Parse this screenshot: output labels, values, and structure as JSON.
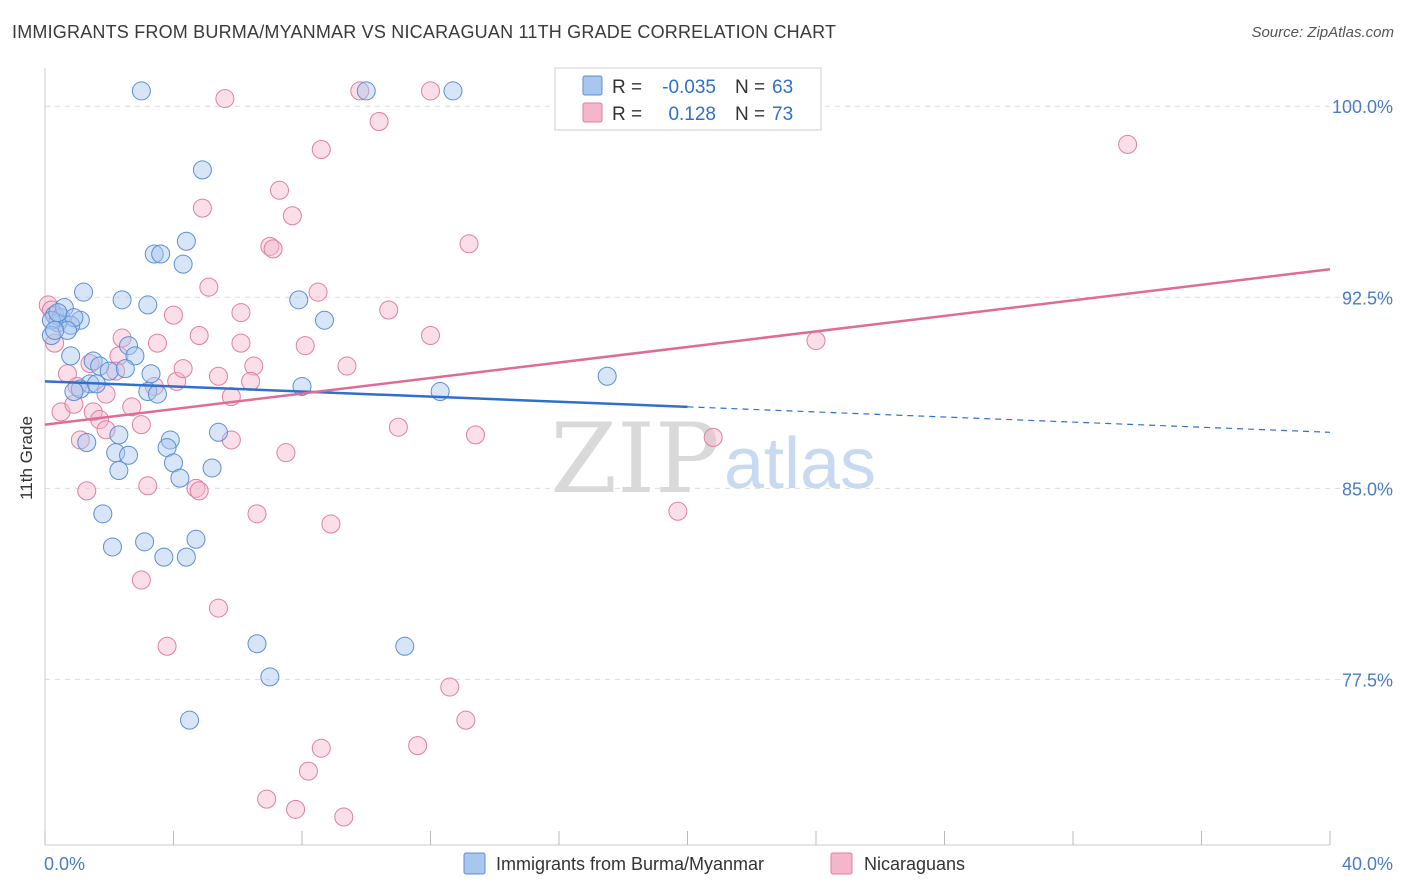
{
  "title": "IMMIGRANTS FROM BURMA/MYANMAR VS NICARAGUAN 11TH GRADE CORRELATION CHART",
  "source": "Source: ZipAtlas.com",
  "watermark": {
    "zip": "ZIP",
    "atlas": "atlas"
  },
  "colors": {
    "blue_fill": "#a9c6ee",
    "blue_stroke": "#5b8fd6",
    "blue_line": "#2f6fcf",
    "pink_fill": "#f5b6cb",
    "pink_stroke": "#e07fa0",
    "pink_line": "#e06c96",
    "tick_text": "#4a7cc4",
    "grid": "#dcdcdc"
  },
  "legend_stats": [
    {
      "r_label": "R =",
      "r_value": "-0.035",
      "n_label": "N =",
      "n_value": "63"
    },
    {
      "r_label": "R =",
      "r_value": "0.128",
      "n_label": "N =",
      "n_value": "73"
    }
  ],
  "chart_data": {
    "type": "scatter",
    "xlabel": "",
    "ylabel": "11th Grade",
    "xlim": [
      0,
      40
    ],
    "ylim": [
      71,
      101.5
    ],
    "y_ticks": [
      77.5,
      85.0,
      92.5,
      100.0
    ],
    "y_tick_labels": [
      "77.5%",
      "85.0%",
      "92.5%",
      "100.0%"
    ],
    "x_tick_labels": [
      "0.0%",
      "40.0%"
    ],
    "grid": true,
    "legend": "bottom-center",
    "series": [
      {
        "name": "Immigrants from Burma/Myanmar",
        "color": "#a9c6ee",
        "trend": {
          "x": [
            0,
            20,
            40
          ],
          "y": [
            89.2,
            88.2,
            87.2
          ],
          "solid_until": 20
        },
        "points": [
          [
            3,
            100.6
          ],
          [
            10,
            100.6
          ],
          [
            12.7,
            100.6
          ],
          [
            4.9,
            97.5
          ],
          [
            4.4,
            94.7
          ],
          [
            3.4,
            94.2
          ],
          [
            3.6,
            94.2
          ],
          [
            4.3,
            93.8
          ],
          [
            1.2,
            92.7
          ],
          [
            2.4,
            92.4
          ],
          [
            3.2,
            92.2
          ],
          [
            0.3,
            91.8
          ],
          [
            0.5,
            91.7
          ],
          [
            1.1,
            91.6
          ],
          [
            0.4,
            91.5
          ],
          [
            0.2,
            91.6
          ],
          [
            0.8,
            91.4
          ],
          [
            7.9,
            92.4
          ],
          [
            8.7,
            91.6
          ],
          [
            2.6,
            90.6
          ],
          [
            0.8,
            90.2
          ],
          [
            1.5,
            90.0
          ],
          [
            2.8,
            90.2
          ],
          [
            1.7,
            89.8
          ],
          [
            2.0,
            89.6
          ],
          [
            3.3,
            89.5
          ],
          [
            1.4,
            89.1
          ],
          [
            1.1,
            88.9
          ],
          [
            0.9,
            88.8
          ],
          [
            3.2,
            88.8
          ],
          [
            8.0,
            89.0
          ],
          [
            12.3,
            88.8
          ],
          [
            17.5,
            89.4
          ],
          [
            2.3,
            87.1
          ],
          [
            3.9,
            86.9
          ],
          [
            5.4,
            87.2
          ],
          [
            3.8,
            86.6
          ],
          [
            1.3,
            86.8
          ],
          [
            2.2,
            86.4
          ],
          [
            2.6,
            86.3
          ],
          [
            4.0,
            86.0
          ],
          [
            2.3,
            85.7
          ],
          [
            5.2,
            85.8
          ],
          [
            4.2,
            85.4
          ],
          [
            1.8,
            84.0
          ],
          [
            4.7,
            83.0
          ],
          [
            3.1,
            82.9
          ],
          [
            2.1,
            82.7
          ],
          [
            3.7,
            82.3
          ],
          [
            4.4,
            82.3
          ],
          [
            6.6,
            78.9
          ],
          [
            11.2,
            78.8
          ],
          [
            7.0,
            77.6
          ],
          [
            4.5,
            75.9
          ],
          [
            0.6,
            92.1
          ],
          [
            0.9,
            91.7
          ],
          [
            2.5,
            89.7
          ],
          [
            0.7,
            91.2
          ],
          [
            1.6,
            89.1
          ],
          [
            3.5,
            88.7
          ],
          [
            0.2,
            91.0
          ],
          [
            0.3,
            91.2
          ],
          [
            0.4,
            91.9
          ]
        ]
      },
      {
        "name": "Nicaraguans",
        "color": "#f5b6cb",
        "trend": {
          "x": [
            0,
            40
          ],
          "y": [
            87.5,
            93.6
          ]
        },
        "points": [
          [
            0.1,
            92.2
          ],
          [
            0.3,
            90.7
          ],
          [
            0.5,
            88.0
          ],
          [
            5.6,
            100.3
          ],
          [
            9.8,
            100.6
          ],
          [
            12.0,
            100.6
          ],
          [
            21.9,
            100.6
          ],
          [
            10.4,
            99.4
          ],
          [
            8.6,
            98.3
          ],
          [
            33.7,
            98.5
          ],
          [
            7.3,
            96.7
          ],
          [
            4.9,
            96.0
          ],
          [
            7.7,
            95.7
          ],
          [
            13.2,
            94.6
          ],
          [
            7.0,
            94.5
          ],
          [
            7.1,
            94.4
          ],
          [
            5.1,
            92.9
          ],
          [
            8.5,
            92.7
          ],
          [
            4.0,
            91.8
          ],
          [
            6.1,
            91.9
          ],
          [
            10.7,
            92.0
          ],
          [
            4.8,
            91.0
          ],
          [
            2.4,
            90.9
          ],
          [
            3.5,
            90.7
          ],
          [
            6.1,
            90.7
          ],
          [
            8.1,
            90.6
          ],
          [
            12.0,
            91.0
          ],
          [
            24.0,
            90.8
          ],
          [
            2.3,
            90.2
          ],
          [
            1.4,
            89.9
          ],
          [
            0.7,
            89.5
          ],
          [
            2.2,
            89.6
          ],
          [
            5.4,
            89.4
          ],
          [
            6.5,
            89.8
          ],
          [
            9.4,
            89.8
          ],
          [
            4.1,
            89.2
          ],
          [
            6.4,
            89.2
          ],
          [
            1.9,
            88.7
          ],
          [
            3.4,
            89.0
          ],
          [
            5.8,
            88.6
          ],
          [
            1.5,
            88.0
          ],
          [
            1.7,
            87.7
          ],
          [
            3.0,
            87.5
          ],
          [
            1.9,
            87.3
          ],
          [
            11.0,
            87.4
          ],
          [
            1.1,
            86.9
          ],
          [
            5.8,
            86.9
          ],
          [
            7.5,
            86.4
          ],
          [
            13.4,
            87.1
          ],
          [
            20.8,
            87.0
          ],
          [
            1.3,
            84.9
          ],
          [
            3.2,
            85.1
          ],
          [
            4.7,
            85.0
          ],
          [
            4.8,
            84.9
          ],
          [
            6.6,
            84.0
          ],
          [
            8.9,
            83.6
          ],
          [
            19.7,
            84.1
          ],
          [
            3.0,
            81.4
          ],
          [
            5.4,
            80.3
          ],
          [
            3.8,
            78.8
          ],
          [
            12.6,
            77.2
          ],
          [
            13.1,
            75.9
          ],
          [
            8.6,
            74.8
          ],
          [
            11.6,
            74.9
          ],
          [
            8.2,
            73.9
          ],
          [
            6.9,
            72.8
          ],
          [
            7.8,
            72.4
          ],
          [
            9.3,
            72.1
          ],
          [
            0.2,
            92.0
          ],
          [
            1.0,
            89.0
          ],
          [
            2.7,
            88.2
          ],
          [
            4.3,
            89.7
          ],
          [
            0.9,
            88.3
          ]
        ]
      }
    ]
  }
}
